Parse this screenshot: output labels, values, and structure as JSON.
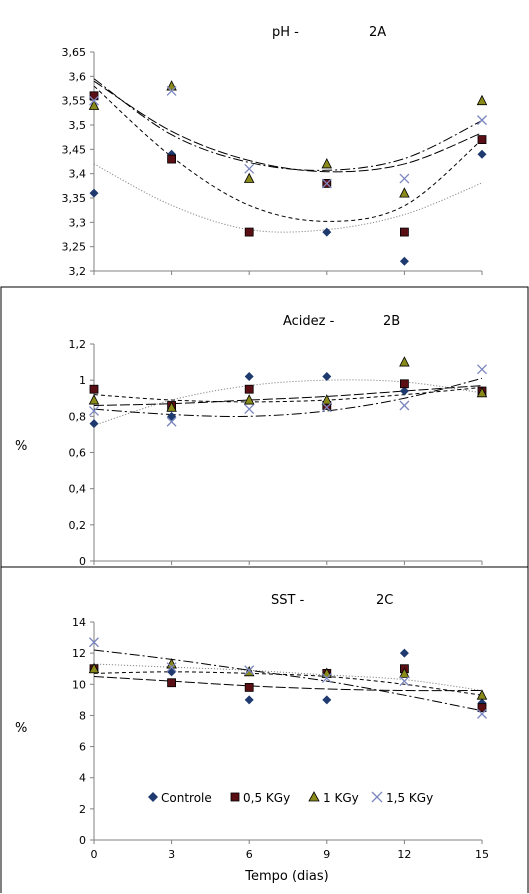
{
  "chart_data": [
    {
      "type": "scatter",
      "title": "pH -",
      "panel": "2A",
      "ylabel": "",
      "ylim": [
        3.2,
        3.65
      ],
      "yticks": [
        3.2,
        3.25,
        3.3,
        3.35,
        3.4,
        3.45,
        3.5,
        3.55,
        3.6,
        3.65
      ],
      "yticklabels": [
        "3,2",
        "3,25",
        "3,3",
        "3,35",
        "3,4",
        "3,45",
        "3,5",
        "3,55",
        "3,6",
        "3,65"
      ],
      "x": [
        0,
        3,
        6,
        9,
        12,
        15
      ],
      "show_xticklabels": false,
      "series": [
        {
          "name": "Controle",
          "values": [
            3.36,
            3.44,
            3.28,
            3.28,
            3.22,
            3.44
          ]
        },
        {
          "name": "0,5 KGy",
          "values": [
            3.56,
            3.43,
            3.28,
            3.38,
            3.28,
            3.47
          ]
        },
        {
          "name": "1 KGy",
          "values": [
            3.54,
            3.58,
            3.39,
            3.42,
            3.36,
            3.55
          ]
        },
        {
          "name": "1,5 KGy",
          "values": [
            3.55,
            3.57,
            3.41,
            3.38,
            3.39,
            3.51
          ]
        }
      ],
      "trend_curves": [
        [
          3.42,
          3.335,
          3.285,
          3.285,
          3.316,
          3.381
        ],
        [
          3.58,
          3.435,
          3.335,
          3.302,
          3.334,
          3.47
        ],
        [
          3.59,
          3.487,
          3.427,
          3.404,
          3.42,
          3.484
        ],
        [
          3.595,
          3.48,
          3.423,
          3.407,
          3.431,
          3.509
        ]
      ]
    },
    {
      "type": "scatter",
      "title": "Acidez -",
      "panel": "2B",
      "ylabel": "%",
      "ylim": [
        0,
        1.2
      ],
      "yticks": [
        0,
        0.2,
        0.4,
        0.6,
        0.8,
        1,
        1.2
      ],
      "yticklabels": [
        "0",
        "0,2",
        "0,4",
        "0,6",
        "0,8",
        "1",
        "1,2"
      ],
      "x": [
        0,
        3,
        6,
        9,
        12,
        15
      ],
      "show_xticklabels": false,
      "series": [
        {
          "name": "Controle",
          "values": [
            0.76,
            0.8,
            1.02,
            1.02,
            0.94,
            0.94
          ]
        },
        {
          "name": "0,5 KGy",
          "values": [
            0.95,
            0.86,
            0.95,
            0.86,
            0.98,
            0.94
          ]
        },
        {
          "name": "1 KGy",
          "values": [
            0.89,
            0.85,
            0.89,
            0.89,
            1.1,
            0.93
          ]
        },
        {
          "name": "1,5 KGy",
          "values": [
            0.83,
            0.77,
            0.84,
            0.85,
            0.86,
            1.06
          ]
        }
      ],
      "trend_curves": [
        [
          0.75,
          0.89,
          0.97,
          1.0,
          0.99,
          0.93
        ],
        [
          0.92,
          0.89,
          0.88,
          0.89,
          0.92,
          0.96
        ],
        [
          0.86,
          0.87,
          0.89,
          0.91,
          0.94,
          0.97
        ],
        [
          0.84,
          0.81,
          0.8,
          0.83,
          0.9,
          1.01
        ]
      ]
    },
    {
      "type": "scatter",
      "title": "SST -",
      "panel": "2C",
      "xlabel": "Tempo (dias)",
      "ylabel": "%",
      "ylim": [
        0,
        14
      ],
      "yticks": [
        0,
        2,
        4,
        6,
        8,
        10,
        12,
        14
      ],
      "yticklabels": [
        "0",
        "2",
        "4",
        "6",
        "8",
        "10",
        "12",
        "14"
      ],
      "x": [
        0,
        3,
        6,
        9,
        12,
        15
      ],
      "xticklabels": [
        "0",
        "3",
        "6",
        "9",
        "12",
        "15"
      ],
      "show_xticklabels": true,
      "legend": "bottom-inside",
      "series": [
        {
          "name": "Controle",
          "values": [
            11.0,
            10.8,
            9.0,
            9.0,
            12.0,
            8.8
          ]
        },
        {
          "name": "0,5 KGy",
          "values": [
            11.0,
            10.1,
            9.8,
            10.7,
            11.0,
            8.5
          ]
        },
        {
          "name": "1 KGy",
          "values": [
            11.0,
            11.3,
            10.8,
            10.7,
            10.7,
            9.3
          ]
        },
        {
          "name": "1,5 KGy",
          "values": [
            12.7,
            11.1,
            10.9,
            10.4,
            10.2,
            8.1
          ]
        }
      ],
      "trend_curves": [
        [
          11.3,
          11.1,
          10.9,
          10.6,
          10.3,
          9.6
        ],
        [
          10.7,
          10.8,
          10.7,
          10.5,
          10.0,
          9.3
        ],
        [
          10.5,
          10.2,
          9.9,
          9.7,
          9.6,
          9.6
        ],
        [
          12.2,
          11.6,
          10.9,
          10.2,
          9.3,
          8.3
        ]
      ]
    }
  ],
  "legend_items": [
    "Controle",
    "0,5 KGy",
    "1 KGy",
    "1,5 KGy"
  ],
  "colors": {
    "controle": "#1f3a6e",
    "kgy05_fill": "#5a0f14",
    "kgy1_fill": "#8a8a1a",
    "kgy15": "#7b86bf",
    "axis": "#808080"
  },
  "marker_icons": [
    "diamond-icon",
    "square-icon",
    "triangle-icon",
    "cross-icon"
  ]
}
